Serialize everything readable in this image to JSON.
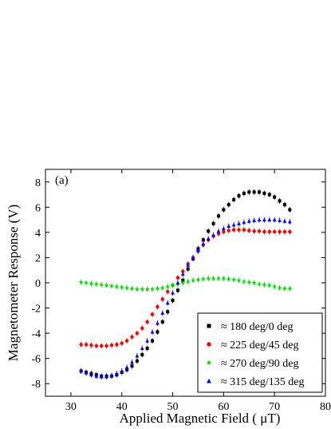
{
  "chart_data": {
    "type": "scatter",
    "panel_label": "(a)",
    "xlabel": "Applied Magnetic Field ( μT)",
    "ylabel": "Magnetometer Response (V)",
    "xlim": [
      25,
      80
    ],
    "ylim": [
      -9,
      9
    ],
    "xticks": [
      30,
      40,
      50,
      60,
      70,
      80
    ],
    "yticks": [
      -8,
      -6,
      -4,
      -2,
      0,
      2,
      4,
      6,
      8
    ],
    "grid": false,
    "legend_position": "bottom-right",
    "series": [
      {
        "name": "≈ 180 deg/0 deg",
        "color": "#000000",
        "marker": "square",
        "x": [
          32,
          33,
          34,
          35,
          36,
          37,
          38,
          39,
          40,
          41,
          42,
          43,
          44,
          45,
          46,
          47,
          48,
          49,
          50,
          51,
          52,
          53,
          54,
          55,
          56,
          57,
          58,
          59,
          60,
          61,
          62,
          63,
          64,
          65,
          66,
          67,
          68,
          69,
          70,
          71,
          72,
          73
        ],
        "y": [
          -7.0,
          -7.1,
          -7.2,
          -7.3,
          -7.4,
          -7.4,
          -7.4,
          -7.3,
          -7.1,
          -6.9,
          -6.6,
          -6.2,
          -5.7,
          -5.2,
          -4.6,
          -3.9,
          -3.1,
          -2.3,
          -1.4,
          -0.6,
          0.2,
          1.1,
          1.9,
          2.7,
          3.4,
          4.1,
          4.7,
          5.3,
          5.8,
          6.2,
          6.6,
          6.9,
          7.1,
          7.2,
          7.2,
          7.2,
          7.1,
          7.0,
          6.8,
          6.5,
          6.2,
          5.8
        ]
      },
      {
        "name": "≈ 225 deg/45 deg",
        "color": "#ff0000",
        "marker": "circle",
        "x": [
          32,
          33,
          34,
          35,
          36,
          37,
          38,
          39,
          40,
          41,
          42,
          43,
          44,
          45,
          46,
          47,
          48,
          49,
          50,
          51,
          52,
          53,
          54,
          55,
          56,
          57,
          58,
          59,
          60,
          61,
          62,
          63,
          64,
          65,
          66,
          67,
          68,
          69,
          70,
          71,
          72,
          73
        ],
        "y": [
          -4.9,
          -4.9,
          -4.95,
          -5.0,
          -5.0,
          -5.0,
          -4.95,
          -4.9,
          -4.8,
          -4.6,
          -4.3,
          -4.0,
          -3.6,
          -3.1,
          -2.5,
          -1.9,
          -1.3,
          -0.7,
          -0.2,
          0.4,
          0.9,
          1.5,
          2.0,
          2.5,
          3.0,
          3.4,
          3.7,
          3.9,
          4.05,
          4.15,
          4.2,
          4.2,
          4.2,
          4.15,
          4.1,
          4.1,
          4.05,
          4.05,
          4.05,
          4.05,
          4.05,
          4.05
        ]
      },
      {
        "name": "≈ 270 deg/90 deg",
        "color": "#00e000",
        "marker": "star",
        "x": [
          32,
          33,
          34,
          35,
          36,
          37,
          38,
          39,
          40,
          41,
          42,
          43,
          44,
          45,
          46,
          47,
          48,
          49,
          50,
          51,
          52,
          53,
          54,
          55,
          56,
          57,
          58,
          59,
          60,
          61,
          62,
          63,
          64,
          65,
          66,
          67,
          68,
          69,
          70,
          71,
          72,
          73
        ],
        "y": [
          0.05,
          0.0,
          -0.05,
          -0.1,
          -0.15,
          -0.2,
          -0.25,
          -0.3,
          -0.35,
          -0.4,
          -0.45,
          -0.5,
          -0.5,
          -0.5,
          -0.5,
          -0.45,
          -0.4,
          -0.3,
          -0.2,
          -0.1,
          0.0,
          0.1,
          0.2,
          0.25,
          0.3,
          0.35,
          0.35,
          0.35,
          0.35,
          0.3,
          0.25,
          0.2,
          0.1,
          0.05,
          0.0,
          -0.1,
          -0.15,
          -0.2,
          -0.3,
          -0.4,
          -0.45,
          -0.45
        ]
      },
      {
        "name": "≈ 315 deg/135 deg",
        "color": "#0000ff",
        "marker": "triangle",
        "x": [
          32,
          33,
          34,
          35,
          36,
          37,
          38,
          39,
          40,
          41,
          42,
          43,
          44,
          45,
          46,
          47,
          48,
          49,
          50,
          51,
          52,
          53,
          54,
          55,
          56,
          57,
          58,
          59,
          60,
          61,
          62,
          63,
          64,
          65,
          66,
          67,
          68,
          69,
          70,
          71,
          72,
          73
        ],
        "y": [
          -7.0,
          -7.15,
          -7.3,
          -7.4,
          -7.45,
          -7.45,
          -7.35,
          -7.2,
          -7.0,
          -6.7,
          -6.3,
          -5.8,
          -5.2,
          -4.6,
          -3.9,
          -3.2,
          -2.4,
          -1.6,
          -0.8,
          0.0,
          0.7,
          1.4,
          2.0,
          2.6,
          3.1,
          3.5,
          3.8,
          4.1,
          4.3,
          4.5,
          4.6,
          4.7,
          4.8,
          4.9,
          4.95,
          5.0,
          5.0,
          5.0,
          5.0,
          4.95,
          4.9,
          4.85
        ]
      }
    ]
  }
}
